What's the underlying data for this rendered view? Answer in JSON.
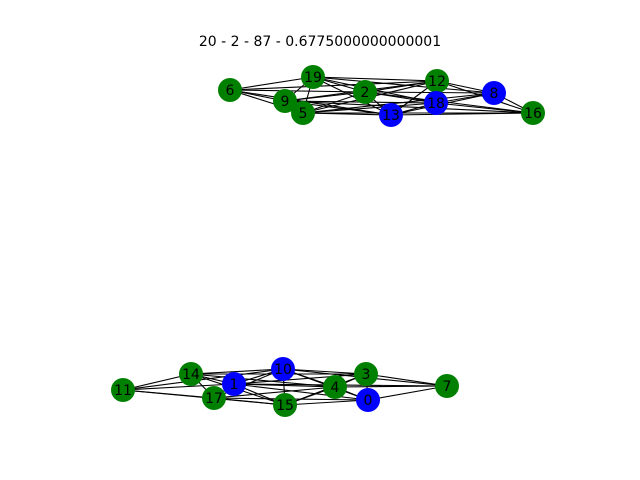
{
  "title": "20 - 2 - 87 - 0.6775000000000001",
  "colors": {
    "green": "#008000",
    "blue": "#0000ff",
    "edge": "#000000"
  },
  "nodes": [
    {
      "id": "0",
      "color": "blue"
    },
    {
      "id": "1",
      "color": "blue"
    },
    {
      "id": "2",
      "color": "green"
    },
    {
      "id": "3",
      "color": "green"
    },
    {
      "id": "4",
      "color": "green"
    },
    {
      "id": "5",
      "color": "green"
    },
    {
      "id": "6",
      "color": "green"
    },
    {
      "id": "7",
      "color": "green"
    },
    {
      "id": "8",
      "color": "blue"
    },
    {
      "id": "9",
      "color": "green"
    },
    {
      "id": "10",
      "color": "blue"
    },
    {
      "id": "11",
      "color": "green"
    },
    {
      "id": "12",
      "color": "green"
    },
    {
      "id": "13",
      "color": "blue"
    },
    {
      "id": "14",
      "color": "green"
    },
    {
      "id": "15",
      "color": "green"
    },
    {
      "id": "16",
      "color": "green"
    },
    {
      "id": "17",
      "color": "green"
    },
    {
      "id": "18",
      "color": "blue"
    },
    {
      "id": "19",
      "color": "green"
    }
  ],
  "edges": [
    [
      "6",
      "19"
    ],
    [
      "6",
      "9"
    ],
    [
      "6",
      "5"
    ],
    [
      "6",
      "2"
    ],
    [
      "6",
      "12"
    ],
    [
      "6",
      "13"
    ],
    [
      "19",
      "9"
    ],
    [
      "19",
      "5"
    ],
    [
      "19",
      "2"
    ],
    [
      "19",
      "12"
    ],
    [
      "19",
      "18"
    ],
    [
      "19",
      "8"
    ],
    [
      "19",
      "13"
    ],
    [
      "9",
      "5"
    ],
    [
      "9",
      "2"
    ],
    [
      "9",
      "12"
    ],
    [
      "9",
      "18"
    ],
    [
      "9",
      "13"
    ],
    [
      "9",
      "16"
    ],
    [
      "5",
      "2"
    ],
    [
      "5",
      "12"
    ],
    [
      "5",
      "18"
    ],
    [
      "5",
      "13"
    ],
    [
      "5",
      "8"
    ],
    [
      "5",
      "16"
    ],
    [
      "2",
      "12"
    ],
    [
      "2",
      "18"
    ],
    [
      "2",
      "13"
    ],
    [
      "2",
      "8"
    ],
    [
      "2",
      "16"
    ],
    [
      "12",
      "18"
    ],
    [
      "12",
      "8"
    ],
    [
      "12",
      "13"
    ],
    [
      "12",
      "16"
    ],
    [
      "18",
      "8"
    ],
    [
      "18",
      "13"
    ],
    [
      "18",
      "16"
    ],
    [
      "8",
      "16"
    ],
    [
      "8",
      "13"
    ],
    [
      "13",
      "16"
    ],
    [
      "11",
      "14"
    ],
    [
      "11",
      "17"
    ],
    [
      "11",
      "1"
    ],
    [
      "11",
      "15"
    ],
    [
      "11",
      "10"
    ],
    [
      "14",
      "17"
    ],
    [
      "14",
      "1"
    ],
    [
      "14",
      "10"
    ],
    [
      "14",
      "15"
    ],
    [
      "14",
      "4"
    ],
    [
      "14",
      "3"
    ],
    [
      "17",
      "1"
    ],
    [
      "17",
      "10"
    ],
    [
      "17",
      "15"
    ],
    [
      "17",
      "4"
    ],
    [
      "17",
      "0"
    ],
    [
      "1",
      "10"
    ],
    [
      "1",
      "15"
    ],
    [
      "1",
      "4"
    ],
    [
      "1",
      "3"
    ],
    [
      "1",
      "0"
    ],
    [
      "1",
      "7"
    ],
    [
      "10",
      "15"
    ],
    [
      "10",
      "4"
    ],
    [
      "10",
      "3"
    ],
    [
      "10",
      "0"
    ],
    [
      "10",
      "7"
    ],
    [
      "15",
      "4"
    ],
    [
      "15",
      "3"
    ],
    [
      "15",
      "0"
    ],
    [
      "4",
      "3"
    ],
    [
      "4",
      "0"
    ],
    [
      "4",
      "7"
    ],
    [
      "3",
      "0"
    ],
    [
      "3",
      "7"
    ],
    [
      "0",
      "7"
    ]
  ]
}
